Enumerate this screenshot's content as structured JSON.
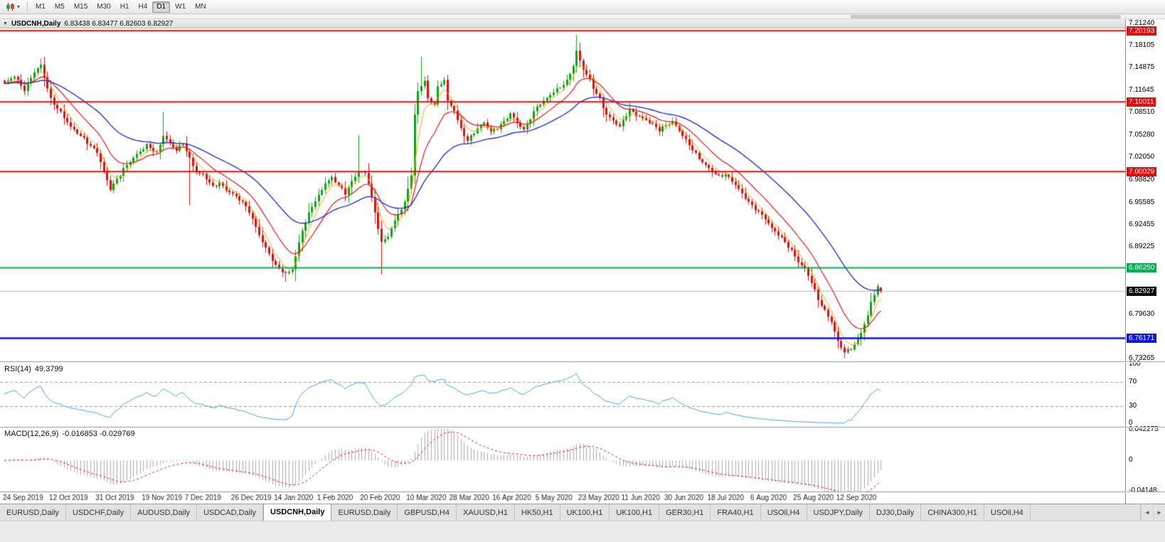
{
  "icons": {
    "dropdown_caret": "▾",
    "collapse_triangle": "▼",
    "tab_scroll_left": "◄",
    "tab_scroll_right": "►"
  },
  "toolbar": {
    "timeframes": [
      {
        "label": "M1",
        "active": false
      },
      {
        "label": "M5",
        "active": false
      },
      {
        "label": "M15",
        "active": false
      },
      {
        "label": "M30",
        "active": false
      },
      {
        "label": "H1",
        "active": false
      },
      {
        "label": "H4",
        "active": false
      },
      {
        "label": "D1",
        "active": true
      },
      {
        "label": "W1",
        "active": false
      },
      {
        "label": "MN",
        "active": false
      }
    ]
  },
  "titlebar": {
    "symbol_title": "USDCNH,Daily",
    "ohlc": "6.83438 6.83477 6.82603 6.82927"
  },
  "chart_data": {
    "type": "candlestick",
    "symbol": "USDCNH",
    "timeframe": "Daily",
    "title": "USDCNH,Daily 6.83438 6.83477 6.82603 6.82927",
    "last_ohlc": {
      "open": 6.83438,
      "high": 6.83477,
      "low": 6.82603,
      "close": 6.82927
    },
    "current_price": {
      "value": 6.82927,
      "label": "6.82927",
      "color": "#000000"
    },
    "price_axis_ticks": [
      "7.21240",
      "7.18105",
      "7.14875",
      "7.11645",
      "7.08510",
      "7.05280",
      "7.02050",
      "6.98820",
      "6.95585",
      "6.92455",
      "6.89225",
      "6.85995",
      "6.79630",
      "6.73265"
    ],
    "horizontal_levels": [
      {
        "value": 7.20193,
        "label": "7.20193",
        "color": "#dd1010",
        "width": 2
      },
      {
        "value": 7.10011,
        "label": "7.10011",
        "color": "#dd1010",
        "width": 2
      },
      {
        "value": 7.00029,
        "label": "7.00029",
        "color": "#dd1010",
        "width": 2
      },
      {
        "value": 6.8625,
        "label": "6.86250",
        "color": "#00b050",
        "width": 2
      },
      {
        "value": 6.76171,
        "label": "6.76171",
        "color": "#1212dd",
        "width": 2.5
      }
    ],
    "moving_averages": [
      {
        "period": 5,
        "color": "#f2a900",
        "width": 1
      },
      {
        "period": 13,
        "color": "#e01414",
        "width": 1.2
      },
      {
        "period": 34,
        "color": "#2631cc",
        "width": 1.4
      }
    ],
    "candle_colors": {
      "up": "#0fa315",
      "down": "#e00d0d"
    },
    "num_candles": 266,
    "close_waypoints": [
      [
        0,
        7.125
      ],
      [
        3,
        7.138
      ],
      [
        6,
        7.118
      ],
      [
        9,
        7.142
      ],
      [
        11,
        7.152
      ],
      [
        14,
        7.105
      ],
      [
        17,
        7.085
      ],
      [
        20,
        7.063
      ],
      [
        24,
        7.048
      ],
      [
        28,
        7.028
      ],
      [
        30,
        6.998
      ],
      [
        32,
        6.975
      ],
      [
        34,
        6.99
      ],
      [
        36,
        7.005
      ],
      [
        38,
        7.015
      ],
      [
        41,
        7.028
      ],
      [
        43,
        7.038
      ],
      [
        46,
        7.028
      ],
      [
        48,
        7.052
      ],
      [
        50,
        7.04
      ],
      [
        52,
        7.03
      ],
      [
        54,
        7.042
      ],
      [
        56,
        7.02
      ],
      [
        58,
        7.0
      ],
      [
        60,
        6.995
      ],
      [
        63,
        6.978
      ],
      [
        65,
        6.985
      ],
      [
        67,
        6.975
      ],
      [
        69,
        6.968
      ],
      [
        72,
        6.955
      ],
      [
        74,
        6.943
      ],
      [
        76,
        6.922
      ],
      [
        78,
        6.9
      ],
      [
        80,
        6.882
      ],
      [
        82,
        6.864
      ],
      [
        85,
        6.854
      ],
      [
        87,
        6.862
      ],
      [
        90,
        6.916
      ],
      [
        93,
        6.95
      ],
      [
        95,
        6.966
      ],
      [
        97,
        6.985
      ],
      [
        99,
        6.992
      ],
      [
        101,
        6.98
      ],
      [
        103,
        6.968
      ],
      [
        105,
        6.986
      ],
      [
        107,
        7.002
      ],
      [
        109,
        6.998
      ],
      [
        110,
        6.985
      ],
      [
        112,
        6.94
      ],
      [
        114,
        6.898
      ],
      [
        116,
        6.908
      ],
      [
        117,
        6.921
      ],
      [
        119,
        6.94
      ],
      [
        121,
        6.955
      ],
      [
        123,
        6.995
      ],
      [
        124,
        7.08
      ],
      [
        125,
        7.115
      ],
      [
        127,
        7.132
      ],
      [
        128,
        7.105
      ],
      [
        130,
        7.098
      ],
      [
        131,
        7.12
      ],
      [
        133,
        7.131
      ],
      [
        134,
        7.1
      ],
      [
        136,
        7.088
      ],
      [
        138,
        7.062
      ],
      [
        140,
        7.045
      ],
      [
        142,
        7.056
      ],
      [
        145,
        7.07
      ],
      [
        147,
        7.058
      ],
      [
        149,
        7.064
      ],
      [
        151,
        7.072
      ],
      [
        153,
        7.082
      ],
      [
        155,
        7.07
      ],
      [
        157,
        7.06
      ],
      [
        159,
        7.078
      ],
      [
        161,
        7.094
      ],
      [
        163,
        7.1
      ],
      [
        166,
        7.114
      ],
      [
        168,
        7.122
      ],
      [
        170,
        7.131
      ],
      [
        172,
        7.152
      ],
      [
        173,
        7.172
      ],
      [
        174,
        7.158
      ],
      [
        175,
        7.146
      ],
      [
        177,
        7.132
      ],
      [
        178,
        7.121
      ],
      [
        180,
        7.105
      ],
      [
        182,
        7.082
      ],
      [
        184,
        7.072
      ],
      [
        186,
        7.064
      ],
      [
        188,
        7.082
      ],
      [
        189,
        7.09
      ],
      [
        191,
        7.082
      ],
      [
        193,
        7.076
      ],
      [
        195,
        7.07
      ],
      [
        198,
        7.06
      ],
      [
        200,
        7.068
      ],
      [
        202,
        7.072
      ],
      [
        204,
        7.058
      ],
      [
        206,
        7.044
      ],
      [
        208,
        7.032
      ],
      [
        210,
        7.02
      ],
      [
        212,
        7.01
      ],
      [
        214,
        7.0
      ],
      [
        216,
        6.992
      ],
      [
        218,
        6.996
      ],
      [
        220,
        6.988
      ],
      [
        222,
        6.976
      ],
      [
        224,
        6.962
      ],
      [
        226,
        6.95
      ],
      [
        228,
        6.942
      ],
      [
        230,
        6.934
      ],
      [
        232,
        6.92
      ],
      [
        234,
        6.91
      ],
      [
        236,
        6.898
      ],
      [
        238,
        6.886
      ],
      [
        240,
        6.872
      ],
      [
        242,
        6.862
      ],
      [
        244,
        6.842
      ],
      [
        246,
        6.816
      ],
      [
        248,
        6.8
      ],
      [
        250,
        6.786
      ],
      [
        252,
        6.758
      ],
      [
        254,
        6.742
      ],
      [
        256,
        6.746
      ],
      [
        258,
        6.758
      ],
      [
        259,
        6.77
      ],
      [
        261,
        6.795
      ],
      [
        262,
        6.814
      ],
      [
        263,
        6.826
      ],
      [
        264,
        6.836
      ],
      [
        265,
        6.82927
      ]
    ],
    "wick_extremes": {
      "11": {
        "high": 7.162
      },
      "48": {
        "high": 7.086
      },
      "56": {
        "low": 6.952
      },
      "85": {
        "low": 6.8425
      },
      "107": {
        "high": 7.053
      },
      "114": {
        "low": 6.853
      },
      "126": {
        "high": 7.165
      },
      "173": {
        "high": 7.196
      },
      "254": {
        "low": 6.733
      }
    },
    "x_axis_dates": [
      [
        "24 Sep 2019",
        0
      ],
      [
        "12 Oct 2019",
        14
      ],
      [
        "31 Oct 2019",
        28
      ],
      [
        "19 Nov 2019",
        42
      ],
      [
        "7 Dec 2019",
        55
      ],
      [
        "26 Dec 2019",
        69
      ],
      [
        "14 Jan 2020",
        82
      ],
      [
        "1 Feb 2020",
        95
      ],
      [
        "20 Feb 2020",
        108
      ],
      [
        "10 Mar 2020",
        122
      ],
      [
        "28 Mar 2020",
        135
      ],
      [
        "16 Apr 2020",
        148
      ],
      [
        "5 May 2020",
        161
      ],
      [
        "23 May 2020",
        174
      ],
      [
        "11 Jun 2020",
        187
      ],
      [
        "30 Jun 2020",
        200
      ],
      [
        "18 Jul 2020",
        213
      ],
      [
        "6 Aug 2020",
        226
      ],
      [
        "25 Aug 2020",
        239
      ],
      [
        "12 Sep 2020",
        252
      ]
    ],
    "indicators": {
      "rsi": {
        "name": "RSI(14)",
        "value_text": "49.3799",
        "levels": [
          "100",
          "70",
          "30",
          "0"
        ],
        "dashed_levels": [
          70,
          30
        ],
        "line_color": "#4aa1de"
      },
      "macd": {
        "name": "MACD(12,26,9)",
        "values_text": "-0.016853 -0.029769",
        "axis_ticks": [
          "0.042275",
          "0",
          "-0.04148"
        ],
        "histogram_color": "#a9a9a9",
        "signal_color": "#e01414"
      }
    }
  },
  "tabbar": {
    "tabs": [
      {
        "label": "EURUSD,Daily",
        "active": false
      },
      {
        "label": "USDCHF,Daily",
        "active": false
      },
      {
        "label": "AUDUSD,Daily",
        "active": false
      },
      {
        "label": "USDCAD,Daily",
        "active": false
      },
      {
        "label": "USDCNH,Daily",
        "active": true
      },
      {
        "label": "EURUSD,Daily",
        "active": false
      },
      {
        "label": "GBPUSD,H4",
        "active": false
      },
      {
        "label": "XAUUSD,H1",
        "active": false
      },
      {
        "label": "HK50,H1",
        "active": false
      },
      {
        "label": "UK100,H1",
        "active": false
      },
      {
        "label": "UK100,H1",
        "active": false
      },
      {
        "label": "GER30,H1",
        "active": false
      },
      {
        "label": "FRA40,H1",
        "active": false
      },
      {
        "label": "USOil,H4",
        "active": false
      },
      {
        "label": "USDJPY,Daily",
        "active": false
      },
      {
        "label": "DJ30,Daily",
        "active": false
      },
      {
        "label": "CHINA300,H1",
        "active": false
      },
      {
        "label": "USOil,H4",
        "active": false
      }
    ]
  }
}
